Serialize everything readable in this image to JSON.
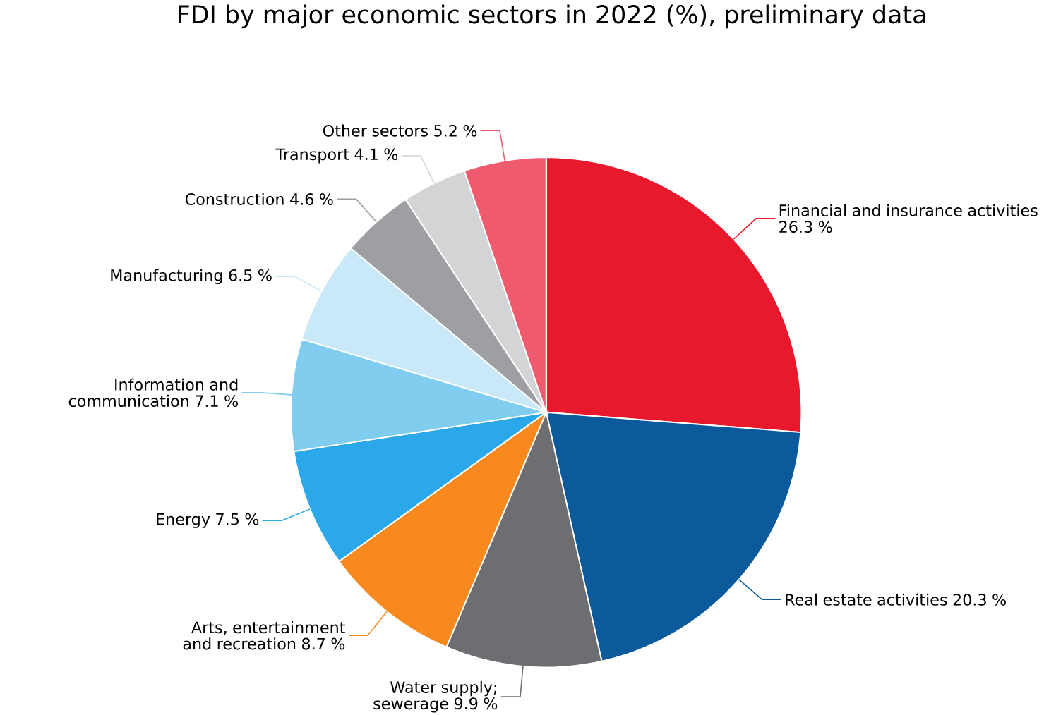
{
  "chart_data": {
    "type": "pie",
    "title": "FDI by major economic sectors in 2022 (%), preliminary data",
    "categories": [
      "Financial and insurance activities",
      "Real estate activities",
      "Water supply; sewerage",
      "Arts, entertainment and recreation",
      "Energy",
      "Information and communication",
      "Manufacturing",
      "Construction",
      "Transport",
      "Other sectors"
    ],
    "values": [
      26.3,
      20.3,
      9.9,
      8.7,
      7.5,
      7.1,
      6.5,
      4.6,
      4.1,
      5.2
    ],
    "value_labels": [
      "26.3 %",
      "20.3 %",
      "9.9 %",
      "8.7 %",
      "7.5 %",
      "7.1 %",
      "6.5 %",
      "4.6 %",
      "4.1 %",
      "5.2 %"
    ],
    "colors": [
      "#e8192c",
      "#0a5a9c",
      "#6d6e71",
      "#f7891f",
      "#2aa8ea",
      "#80cdf0",
      "#c9e8f8",
      "#9d9fa2",
      "#d3d4d6",
      "#f05a6e"
    ]
  }
}
